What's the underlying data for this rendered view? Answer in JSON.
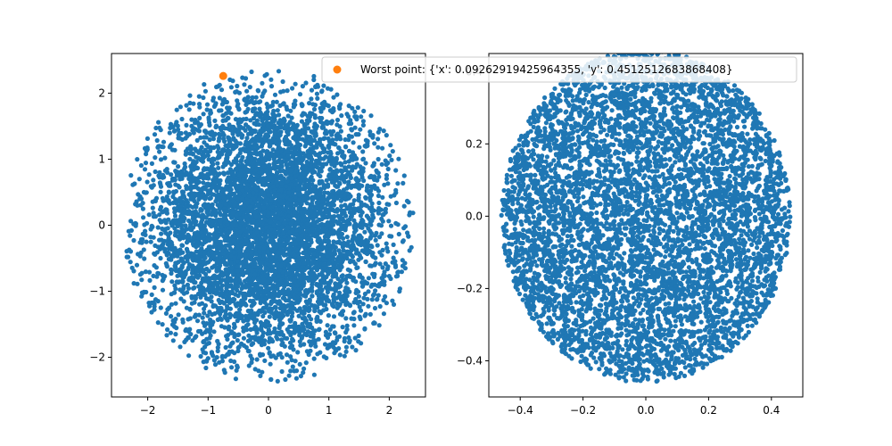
{
  "colors": {
    "points": "#1f77b4",
    "highlight": "#ff7f0e",
    "axes": "#000000"
  },
  "chart_data": [
    {
      "type": "scatter",
      "title": "",
      "xlabel": "",
      "ylabel": "",
      "xlim": [
        -2.6,
        2.6
      ],
      "ylim": [
        -2.6,
        2.6
      ],
      "xticks": [
        -2,
        -1,
        0,
        1,
        2
      ],
      "yticks": [
        -2,
        -1,
        0,
        1,
        2
      ],
      "grid": false,
      "series": [
        {
          "kind": "cloud",
          "distribution": "denser at center, sparser toward edge",
          "radius": 2.4,
          "approx_points": 6000,
          "color": "#1f77b4"
        },
        {
          "kind": "highlight",
          "color": "#ff7f0e",
          "points": [
            {
              "x": -0.75,
              "y": 2.26
            }
          ]
        }
      ]
    },
    {
      "type": "scatter",
      "title": "",
      "xlabel": "",
      "ylabel": "",
      "xlim": [
        -0.5,
        0.5
      ],
      "ylim": [
        -0.5,
        0.45
      ],
      "xticks": [
        -0.4,
        -0.2,
        0.0,
        0.2,
        0.4
      ],
      "yticks": [
        -0.4,
        -0.2,
        0.0,
        0.2,
        0.4
      ],
      "grid": false,
      "series": [
        {
          "kind": "cloud",
          "distribution": "uniform disk",
          "radius": 0.46,
          "approx_points": 6000,
          "color": "#1f77b4"
        }
      ]
    }
  ],
  "legend": {
    "placement": "top-center",
    "entries": [
      {
        "label": "Worst point: {'x': 0.09262919425964355, 'y': 0.4512512683868408}",
        "color": "#ff7f0e"
      }
    ]
  }
}
